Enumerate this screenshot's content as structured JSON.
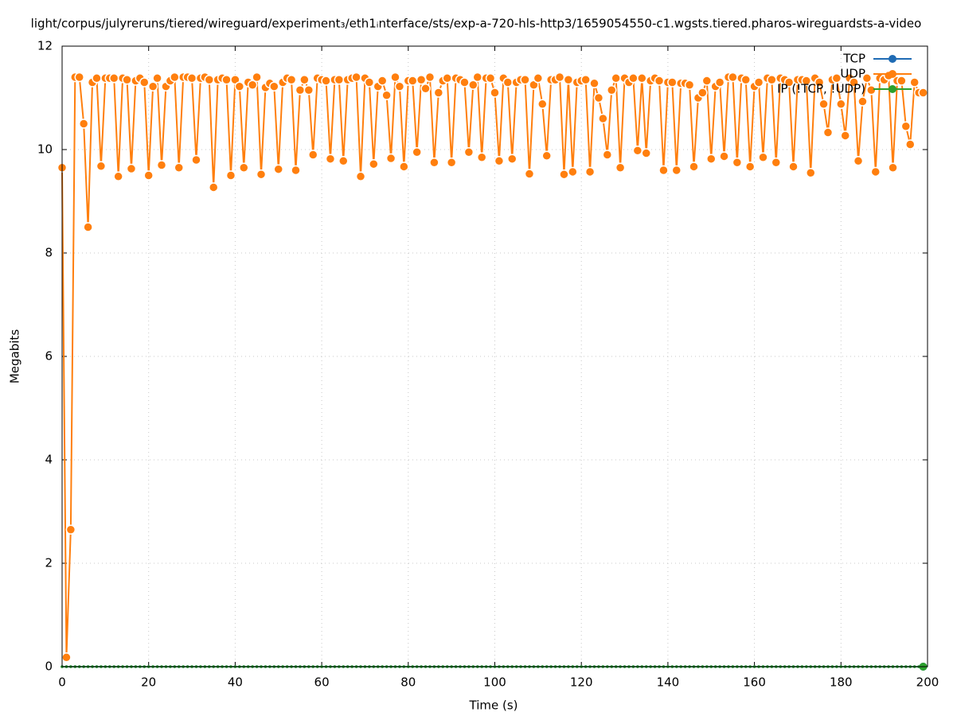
{
  "chart_data": {
    "type": "line",
    "title": "light/corpus/julyreruns/tiered/wireguard/experiment₃/eth1ᵢnterface/sts/exp-a-720-hls-http3/1659054550-c1.wgsts.tiered.pharos-wireguardsts-a-video",
    "x_label": "Time (s)",
    "y_label": "Megabits",
    "xlim": [
      0,
      200
    ],
    "ylim": [
      0,
      12
    ],
    "xticks": [
      0,
      20,
      40,
      60,
      80,
      100,
      120,
      140,
      160,
      180,
      200
    ],
    "yticks": [
      0,
      2,
      4,
      6,
      8,
      10,
      12
    ],
    "grid": true,
    "legend": "top-right",
    "x": [
      0,
      1,
      2,
      3,
      4,
      5,
      6,
      7,
      8,
      9,
      10,
      11,
      12,
      13,
      14,
      15,
      16,
      17,
      18,
      19,
      20,
      21,
      22,
      23,
      24,
      25,
      26,
      27,
      28,
      29,
      30,
      31,
      32,
      33,
      34,
      35,
      36,
      37,
      38,
      39,
      40,
      41,
      42,
      43,
      44,
      45,
      46,
      47,
      48,
      49,
      50,
      51,
      52,
      53,
      54,
      55,
      56,
      57,
      58,
      59,
      60,
      61,
      62,
      63,
      64,
      65,
      66,
      67,
      68,
      69,
      70,
      71,
      72,
      73,
      74,
      75,
      76,
      77,
      78,
      79,
      80,
      81,
      82,
      83,
      84,
      85,
      86,
      87,
      88,
      89,
      90,
      91,
      92,
      93,
      94,
      95,
      96,
      97,
      98,
      99,
      100,
      101,
      102,
      103,
      104,
      105,
      106,
      107,
      108,
      109,
      110,
      111,
      112,
      113,
      114,
      115,
      116,
      117,
      118,
      119,
      120,
      121,
      122,
      123,
      124,
      125,
      126,
      127,
      128,
      129,
      130,
      131,
      132,
      133,
      134,
      135,
      136,
      137,
      138,
      139,
      140,
      141,
      142,
      143,
      144,
      145,
      146,
      147,
      148,
      149,
      150,
      151,
      152,
      153,
      154,
      155,
      156,
      157,
      158,
      159,
      160,
      161,
      162,
      163,
      164,
      165,
      166,
      167,
      168,
      169,
      170,
      171,
      172,
      173,
      174,
      175,
      176,
      177,
      178,
      179,
      180,
      181,
      182,
      183,
      184,
      185,
      186,
      187,
      188,
      189,
      190,
      191,
      192,
      193,
      194,
      195,
      196,
      197,
      198,
      199
    ],
    "series": [
      {
        "name": "TCP",
        "color": "#1f6bb4",
        "values": [
          0,
          0,
          0,
          0,
          0,
          0,
          0,
          0,
          0,
          0,
          0,
          0,
          0,
          0,
          0,
          0,
          0,
          0,
          0,
          0,
          0,
          0,
          0,
          0,
          0,
          0,
          0,
          0,
          0,
          0,
          0,
          0,
          0,
          0,
          0,
          0,
          0,
          0,
          0,
          0,
          0,
          0,
          0,
          0,
          0,
          0,
          0,
          0,
          0,
          0,
          0,
          0,
          0,
          0,
          0,
          0,
          0,
          0,
          0,
          0,
          0,
          0,
          0,
          0,
          0,
          0,
          0,
          0,
          0,
          0,
          0,
          0,
          0,
          0,
          0,
          0,
          0,
          0,
          0,
          0,
          0,
          0,
          0,
          0,
          0,
          0,
          0,
          0,
          0,
          0,
          0,
          0,
          0,
          0,
          0,
          0,
          0,
          0,
          0,
          0,
          0,
          0,
          0,
          0,
          0,
          0,
          0,
          0,
          0,
          0,
          0,
          0,
          0,
          0,
          0,
          0,
          0,
          0,
          0,
          0,
          0,
          0,
          0,
          0,
          0,
          0,
          0,
          0,
          0,
          0,
          0,
          0,
          0,
          0,
          0,
          0,
          0,
          0,
          0,
          0,
          0,
          0,
          0,
          0,
          0,
          0,
          0,
          0,
          0,
          0,
          0,
          0,
          0,
          0,
          0,
          0,
          0,
          0,
          0,
          0,
          0,
          0,
          0,
          0,
          0,
          0,
          0,
          0,
          0,
          0,
          0,
          0,
          0,
          0,
          0,
          0,
          0,
          0,
          0,
          0,
          0,
          0,
          0,
          0,
          0,
          0,
          0,
          0,
          0,
          0,
          0,
          0,
          0,
          0,
          0,
          0,
          0,
          0,
          0,
          0
        ]
      },
      {
        "name": "UDP",
        "color": "#ff7f0e",
        "values": [
          9.65,
          0.18,
          2.65,
          11.4,
          11.4,
          10.5,
          8.5,
          11.3,
          11.38,
          9.68,
          11.38,
          11.38,
          11.38,
          9.48,
          11.38,
          11.35,
          9.63,
          11.33,
          11.38,
          11.3,
          9.5,
          11.22,
          11.38,
          9.7,
          11.22,
          11.33,
          11.4,
          9.65,
          11.4,
          11.4,
          11.38,
          9.8,
          11.38,
          11.4,
          11.35,
          9.27,
          11.35,
          11.38,
          11.35,
          9.5,
          11.35,
          11.22,
          9.65,
          11.3,
          11.25,
          11.4,
          9.52,
          11.2,
          11.28,
          11.22,
          9.62,
          11.3,
          11.38,
          11.35,
          9.6,
          11.15,
          11.35,
          11.15,
          9.9,
          11.38,
          11.35,
          11.33,
          9.82,
          11.35,
          11.35,
          9.78,
          11.35,
          11.38,
          11.4,
          9.48,
          11.38,
          11.3,
          9.72,
          11.22,
          11.33,
          11.05,
          9.83,
          11.4,
          11.22,
          9.67,
          11.33,
          11.33,
          9.95,
          11.35,
          11.18,
          11.4,
          9.75,
          11.1,
          11.33,
          11.38,
          9.75,
          11.38,
          11.35,
          11.3,
          9.95,
          11.25,
          11.4,
          9.85,
          11.38,
          11.38,
          11.1,
          9.78,
          11.38,
          11.3,
          9.82,
          11.3,
          11.35,
          11.35,
          9.53,
          11.25,
          11.38,
          10.88,
          9.88,
          11.35,
          11.35,
          11.4,
          9.52,
          11.35,
          9.57,
          11.3,
          11.33,
          11.35,
          9.57,
          11.28,
          11.0,
          10.6,
          9.9,
          11.15,
          11.38,
          9.65,
          11.38,
          11.3,
          11.38,
          9.98,
          11.38,
          9.93,
          11.33,
          11.38,
          11.33,
          9.6,
          11.3,
          11.3,
          9.6,
          11.28,
          11.28,
          11.25,
          9.67,
          11.0,
          11.1,
          11.33,
          9.82,
          11.22,
          11.3,
          9.87,
          11.4,
          11.4,
          9.75,
          11.38,
          11.35,
          9.67,
          11.22,
          11.3,
          9.85,
          11.38,
          11.35,
          9.75,
          11.38,
          11.35,
          11.3,
          9.67,
          11.35,
          11.35,
          11.33,
          9.55,
          11.38,
          11.3,
          10.88,
          10.33,
          11.35,
          11.38,
          10.88,
          10.27,
          11.38,
          11.3,
          9.78,
          10.93,
          11.38,
          11.15,
          9.57,
          11.38,
          11.35,
          11.43,
          9.65,
          11.33,
          11.33,
          10.45,
          10.1,
          11.3,
          11.1,
          11.1
        ]
      },
      {
        "name": "IP (!TCP, !UDP)",
        "color": "#2ca02c",
        "values": [
          0,
          0,
          0,
          0,
          0,
          0,
          0,
          0,
          0,
          0,
          0,
          0,
          0,
          0,
          0,
          0,
          0,
          0,
          0,
          0,
          0,
          0,
          0,
          0,
          0,
          0,
          0,
          0,
          0,
          0,
          0,
          0,
          0,
          0,
          0,
          0,
          0,
          0,
          0,
          0,
          0,
          0,
          0,
          0,
          0,
          0,
          0,
          0,
          0,
          0,
          0,
          0,
          0,
          0,
          0,
          0,
          0,
          0,
          0,
          0,
          0,
          0,
          0,
          0,
          0,
          0,
          0,
          0,
          0,
          0,
          0,
          0,
          0,
          0,
          0,
          0,
          0,
          0,
          0,
          0,
          0,
          0,
          0,
          0,
          0,
          0,
          0,
          0,
          0,
          0,
          0,
          0,
          0,
          0,
          0,
          0,
          0,
          0,
          0,
          0,
          0,
          0,
          0,
          0,
          0,
          0,
          0,
          0,
          0,
          0,
          0,
          0,
          0,
          0,
          0,
          0,
          0,
          0,
          0,
          0,
          0,
          0,
          0,
          0,
          0,
          0,
          0,
          0,
          0,
          0,
          0,
          0,
          0,
          0,
          0,
          0,
          0,
          0,
          0,
          0,
          0,
          0,
          0,
          0,
          0,
          0,
          0,
          0,
          0,
          0,
          0,
          0,
          0,
          0,
          0,
          0,
          0,
          0,
          0,
          0,
          0,
          0,
          0,
          0,
          0,
          0,
          0,
          0,
          0,
          0,
          0,
          0,
          0,
          0,
          0,
          0,
          0,
          0,
          0,
          0,
          0,
          0,
          0,
          0,
          0,
          0,
          0,
          0,
          0,
          0,
          0,
          0,
          0,
          0,
          0,
          0,
          0,
          0,
          0,
          0
        ]
      }
    ]
  }
}
